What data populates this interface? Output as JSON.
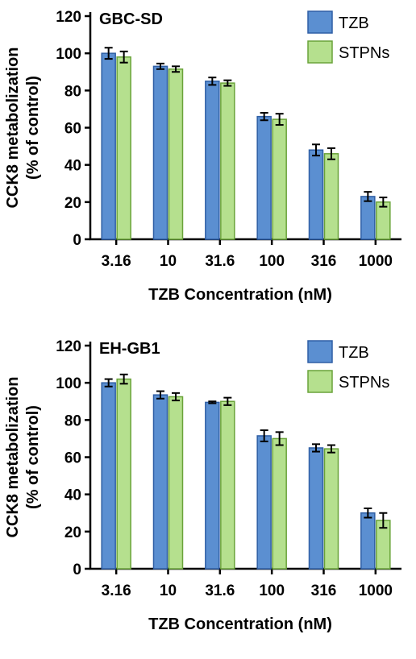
{
  "chart_data": [
    {
      "type": "bar",
      "title": "GBC-SD",
      "xlabel": "TZB Concentration (nM)",
      "ylabel": [
        "CCK8 metabolization",
        "(% of control)"
      ],
      "categories": [
        "3.16",
        "10",
        "31.6",
        "100",
        "316",
        "1000"
      ],
      "ylim": [
        0,
        120
      ],
      "yticks": [
        0,
        20,
        40,
        60,
        80,
        100,
        120
      ],
      "legend_position": "top-right",
      "series": [
        {
          "name": "TZB",
          "color": "#5b8fd1",
          "values": [
            100,
            93,
            85,
            66,
            48,
            23
          ],
          "errors": [
            3,
            1.5,
            2,
            2,
            3,
            2.5
          ]
        },
        {
          "name": "STPNs",
          "color": "#b5e08e",
          "values": [
            98,
            91.5,
            84,
            64.5,
            46,
            20
          ],
          "errors": [
            3,
            1.5,
            1.5,
            3,
            3,
            2.5
          ]
        }
      ]
    },
    {
      "type": "bar",
      "title": "EH-GB1",
      "xlabel": "TZB Concentration (nM)",
      "ylabel": [
        "CCK8 metabolization",
        "(% of control)"
      ],
      "categories": [
        "3.16",
        "10",
        "31.6",
        "100",
        "316",
        "1000"
      ],
      "ylim": [
        0,
        120
      ],
      "yticks": [
        0,
        20,
        40,
        60,
        80,
        100,
        120
      ],
      "legend_position": "top-right",
      "series": [
        {
          "name": "TZB",
          "color": "#5b8fd1",
          "values": [
            100,
            93.5,
            89.5,
            71.5,
            65,
            30
          ],
          "errors": [
            2,
            2,
            0.5,
            3,
            2,
            2.5
          ]
        },
        {
          "name": "STPNs",
          "color": "#b5e08e",
          "values": [
            102,
            92.5,
            90,
            70,
            64.5,
            26
          ],
          "errors": [
            2.5,
            2,
            2,
            3.5,
            2,
            4
          ]
        }
      ]
    }
  ]
}
